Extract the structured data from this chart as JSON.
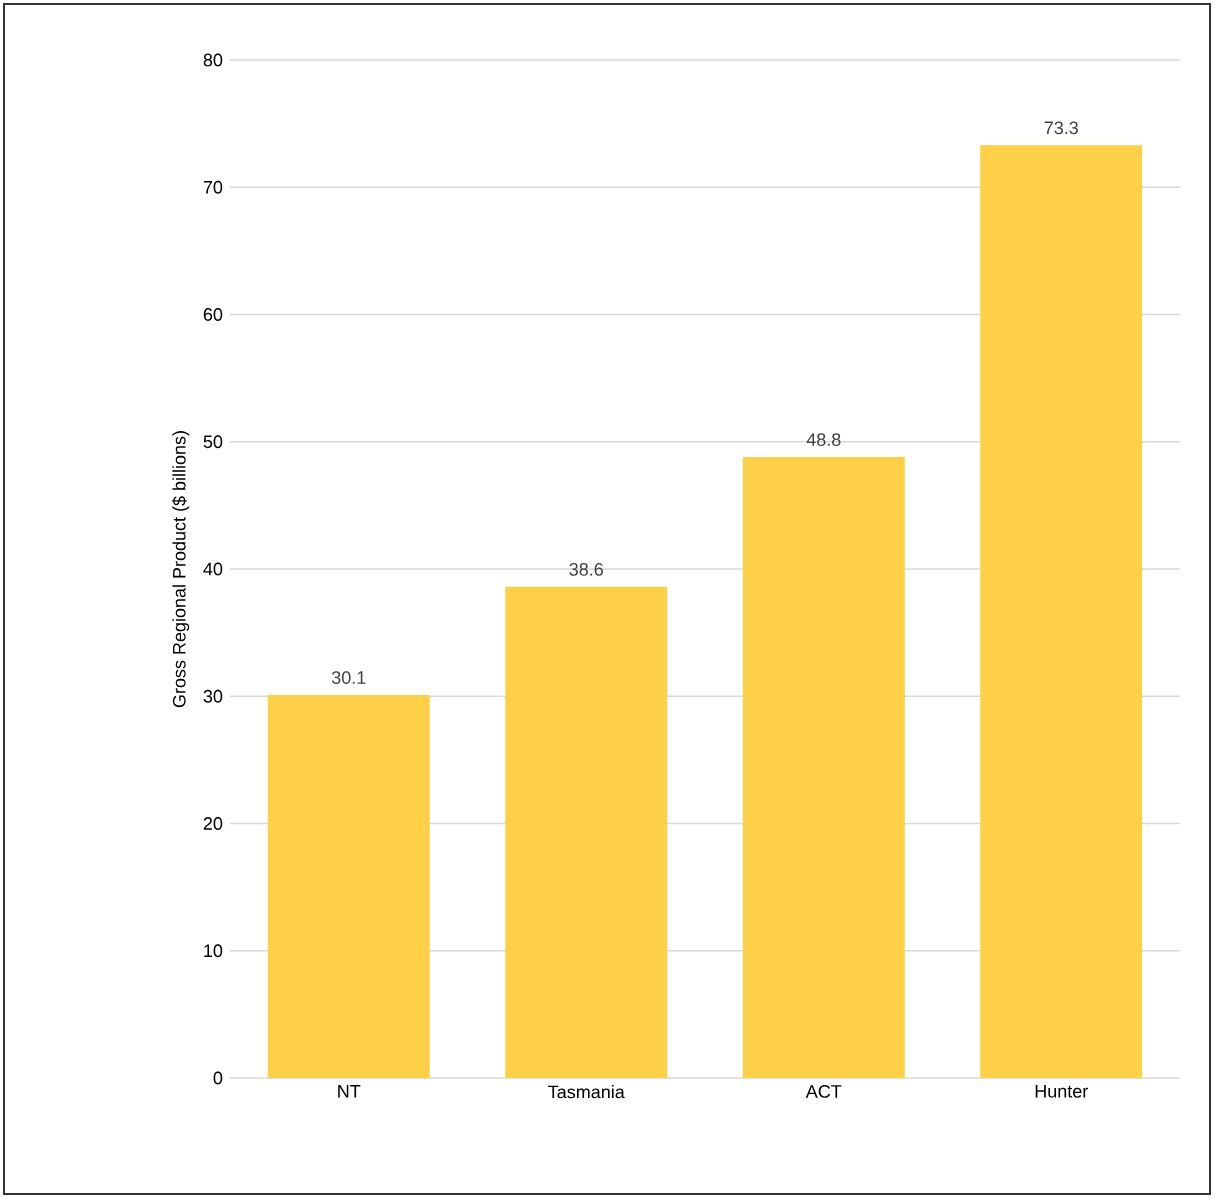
{
  "chart_data": {
    "type": "bar",
    "ylabel": "Gross Regional Product ($ billions)",
    "categories": [
      "NT",
      "Tasmania",
      "ACT",
      "Hunter"
    ],
    "values": [
      30.1,
      38.6,
      48.8,
      73.3
    ],
    "color": "#fdd047",
    "ylim": [
      0,
      80
    ],
    "yticks": [
      0,
      10,
      20,
      30,
      40,
      50,
      60,
      70,
      80
    ],
    "grid": "y",
    "data_labels": true
  }
}
